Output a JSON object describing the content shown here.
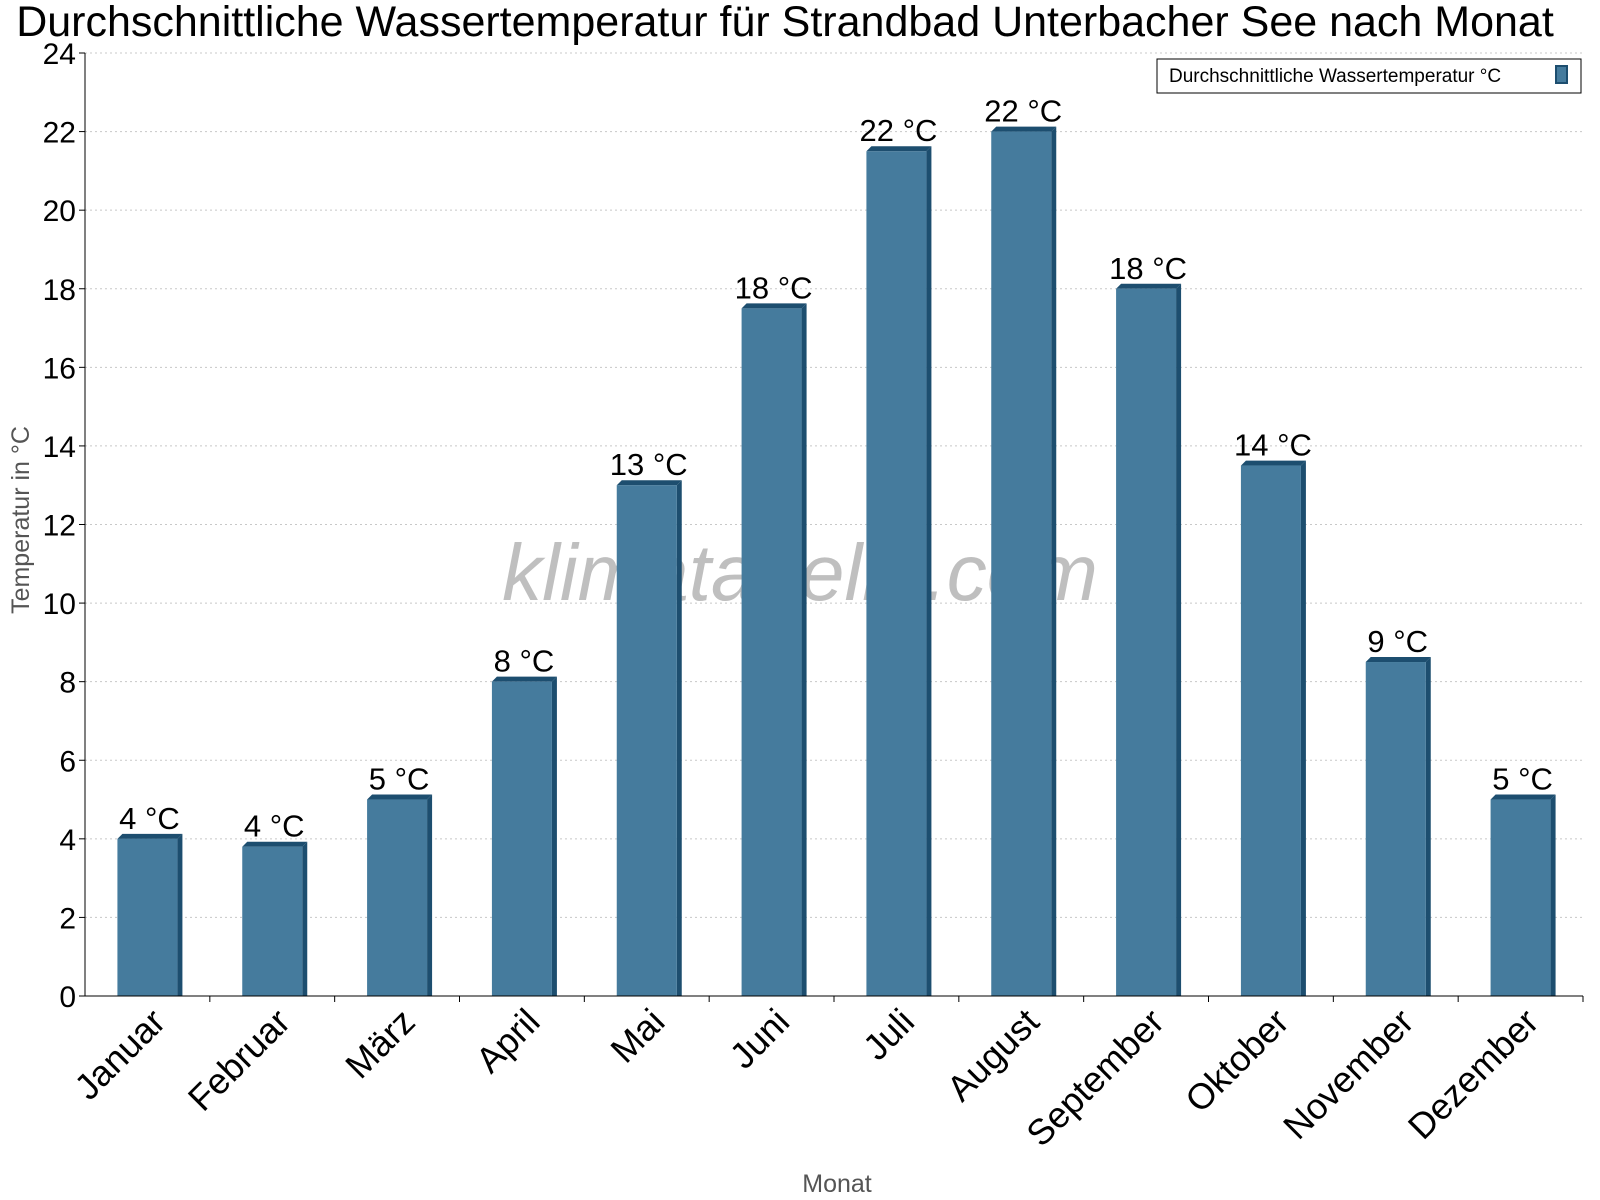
{
  "chart_data": {
    "type": "bar",
    "title": "Durchschnittliche Wassertemperatur für Strandbad Unterbacher See nach Monat",
    "xlabel": "Monat",
    "ylabel": "Temperatur in °C",
    "ylim": [
      0,
      24
    ],
    "yticks": [
      "0",
      "2",
      "4",
      "6",
      "8",
      "10",
      "12",
      "14",
      "16",
      "18",
      "20",
      "22",
      "24"
    ],
    "grid": true,
    "legend_position": "top-right",
    "categories": [
      "Januar",
      "Februar",
      "März",
      "April",
      "Mai",
      "Juni",
      "Juli",
      "August",
      "September",
      "Oktober",
      "November",
      "Dezember"
    ],
    "series": [
      {
        "name": "Durchschnittliche Wassertemperatur °C",
        "values": [
          4,
          3.8,
          5,
          8,
          13,
          17.5,
          21.5,
          22,
          18,
          13.5,
          8.5,
          5
        ],
        "labels": [
          "4 °C",
          "4 °C",
          "5 °C",
          "8 °C",
          "13 °C",
          "18 °C",
          "22 °C",
          "22 °C",
          "18 °C",
          "14 °C",
          "9 °C",
          "5 °C"
        ],
        "color": "#457b9d",
        "shade_color": "#1d4e6f"
      }
    ]
  },
  "watermark": "klimatabelle.com"
}
